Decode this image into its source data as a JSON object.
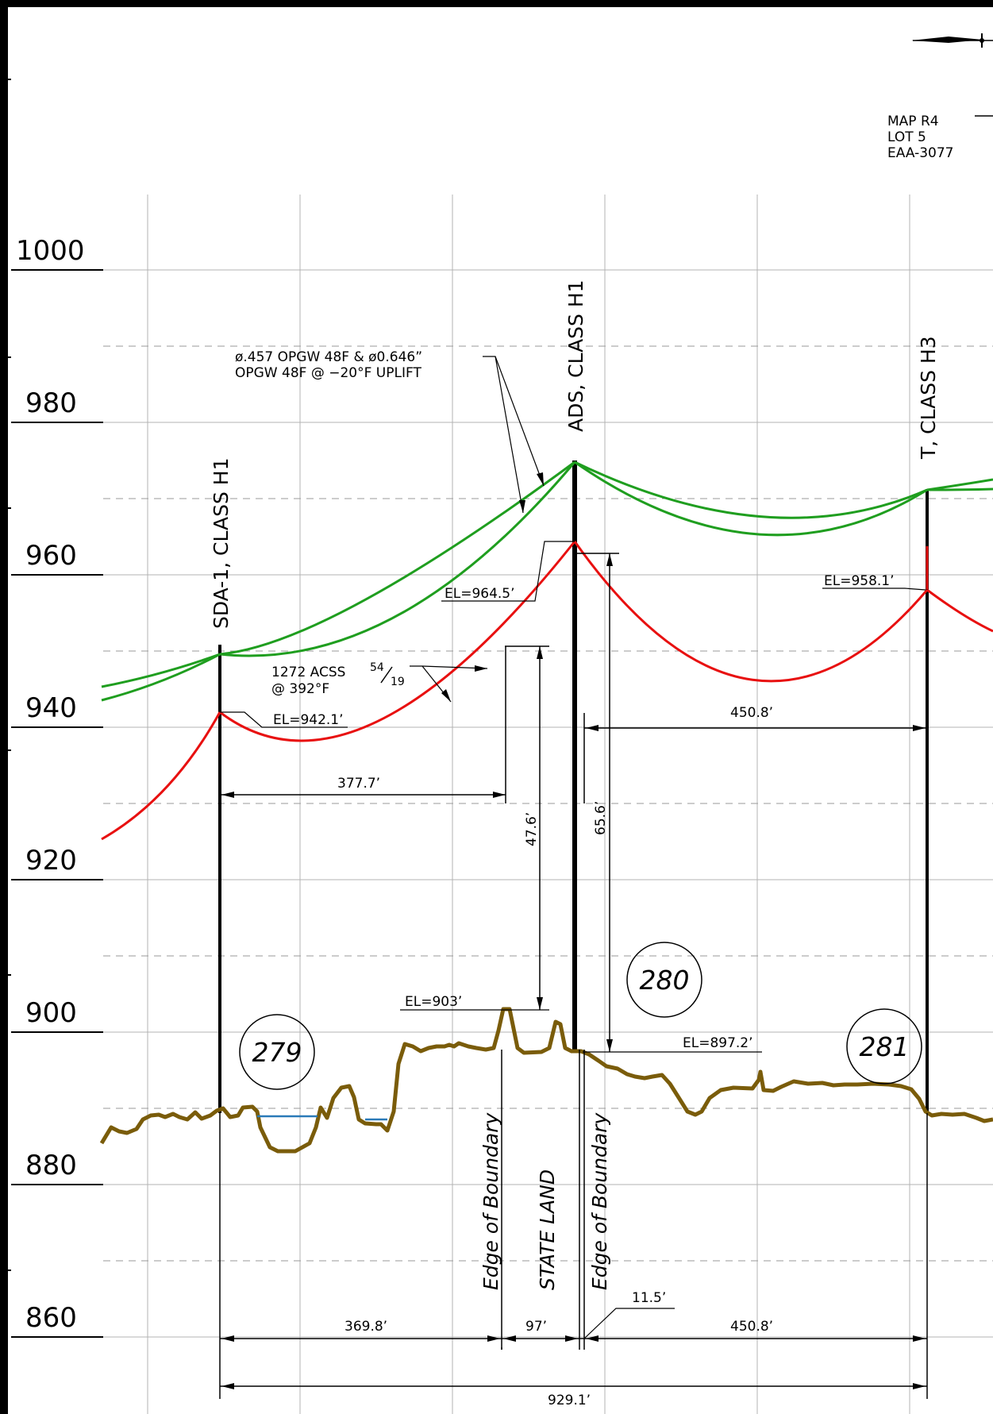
{
  "axis": {
    "elevation_labels": [
      "1000",
      "980",
      "960",
      "940",
      "920",
      "900",
      "880",
      "860"
    ]
  },
  "parcel": {
    "map": "MAP R4",
    "lot": "LOT 5",
    "easement": "EAA-3077"
  },
  "structures": [
    {
      "label": "SDA-1, CLASS H1",
      "el_label": "EL=942.1’"
    },
    {
      "label": "ADS, CLASS H1",
      "el_label": "EL=964.5’"
    },
    {
      "label": "T, CLASS H3",
      "el_label": "EL=958.1’"
    }
  ],
  "wires": {
    "opgw_note_line1": "ø.457 OPGW 48F & ø0.646”",
    "opgw_note_line2": "OPGW 48F @ −20°F UPLIFT",
    "conductor_note_line1": "1272 ACSS",
    "conductor_fraction_num": "54",
    "conductor_fraction_den": "19",
    "conductor_note_line2": "@ 392°F"
  },
  "ground_labels": {
    "high_point": "EL=903’",
    "at_ads": "EL=897.2’"
  },
  "clearances": {
    "left": "47.6’",
    "right": "65.6’"
  },
  "spans": {
    "upper_left": "377.7’",
    "upper_right": "450.8’",
    "bottom_a": "369.8’",
    "bottom_b": "97’",
    "bottom_c": "11.5’",
    "bottom_d": "450.8’",
    "total": "929.1’"
  },
  "land_labels": {
    "boundary_1": "Edge of Boundary",
    "state_land": "STATE LAND",
    "boundary_2": "Edge of Boundary"
  },
  "station_markers": [
    "279",
    "280",
    "281"
  ],
  "colors": {
    "opgw": "#1f9e1f",
    "conductor": "#e81010",
    "ground_profile": "#7a5c0a",
    "water": "#2a7ab8",
    "grid": "#b3b3b3"
  }
}
